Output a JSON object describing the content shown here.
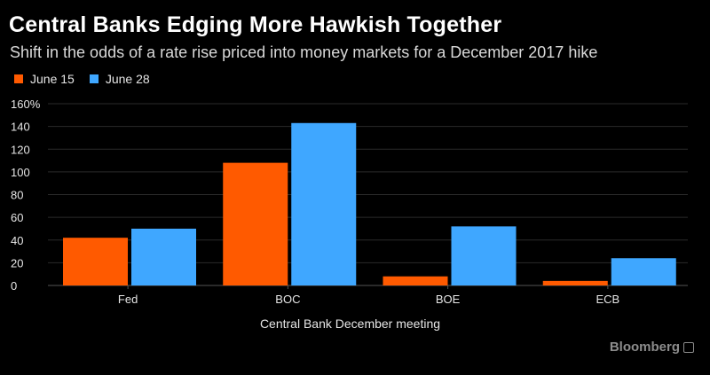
{
  "title": "Central Banks Edging More Hawkish Together",
  "subtitle": "Shift in the odds of a rate rise priced into money markets for a December 2017 hike",
  "brand": "Bloomberg",
  "brand_icon": "bloomberg-terminal-icon",
  "colors": {
    "background": "#000000",
    "series_june15": "#ff5a00",
    "series_june28": "#3fa7ff",
    "grid": "#2a2a2a",
    "axis_text": "#e6e6e6"
  },
  "chart_data": {
    "type": "bar",
    "title": "Central Banks Edging More Hawkish Together",
    "subtitle": "Shift in the odds of a rate rise priced into money markets for a December 2017 hike",
    "categories": [
      "Fed",
      "BOC",
      "BOE",
      "ECB"
    ],
    "series": [
      {
        "name": "June 15",
        "values": [
          42,
          108,
          8,
          4
        ]
      },
      {
        "name": "June 28",
        "values": [
          50,
          143,
          52,
          24
        ]
      }
    ],
    "xlabel": "Central Bank December meeting",
    "ylabel": "",
    "ylim": [
      0,
      160
    ],
    "y_ticks": [
      "0",
      "20",
      "40",
      "60",
      "80",
      "100",
      "120",
      "140",
      "160%"
    ],
    "grid": true,
    "legend_position": "top-left"
  }
}
